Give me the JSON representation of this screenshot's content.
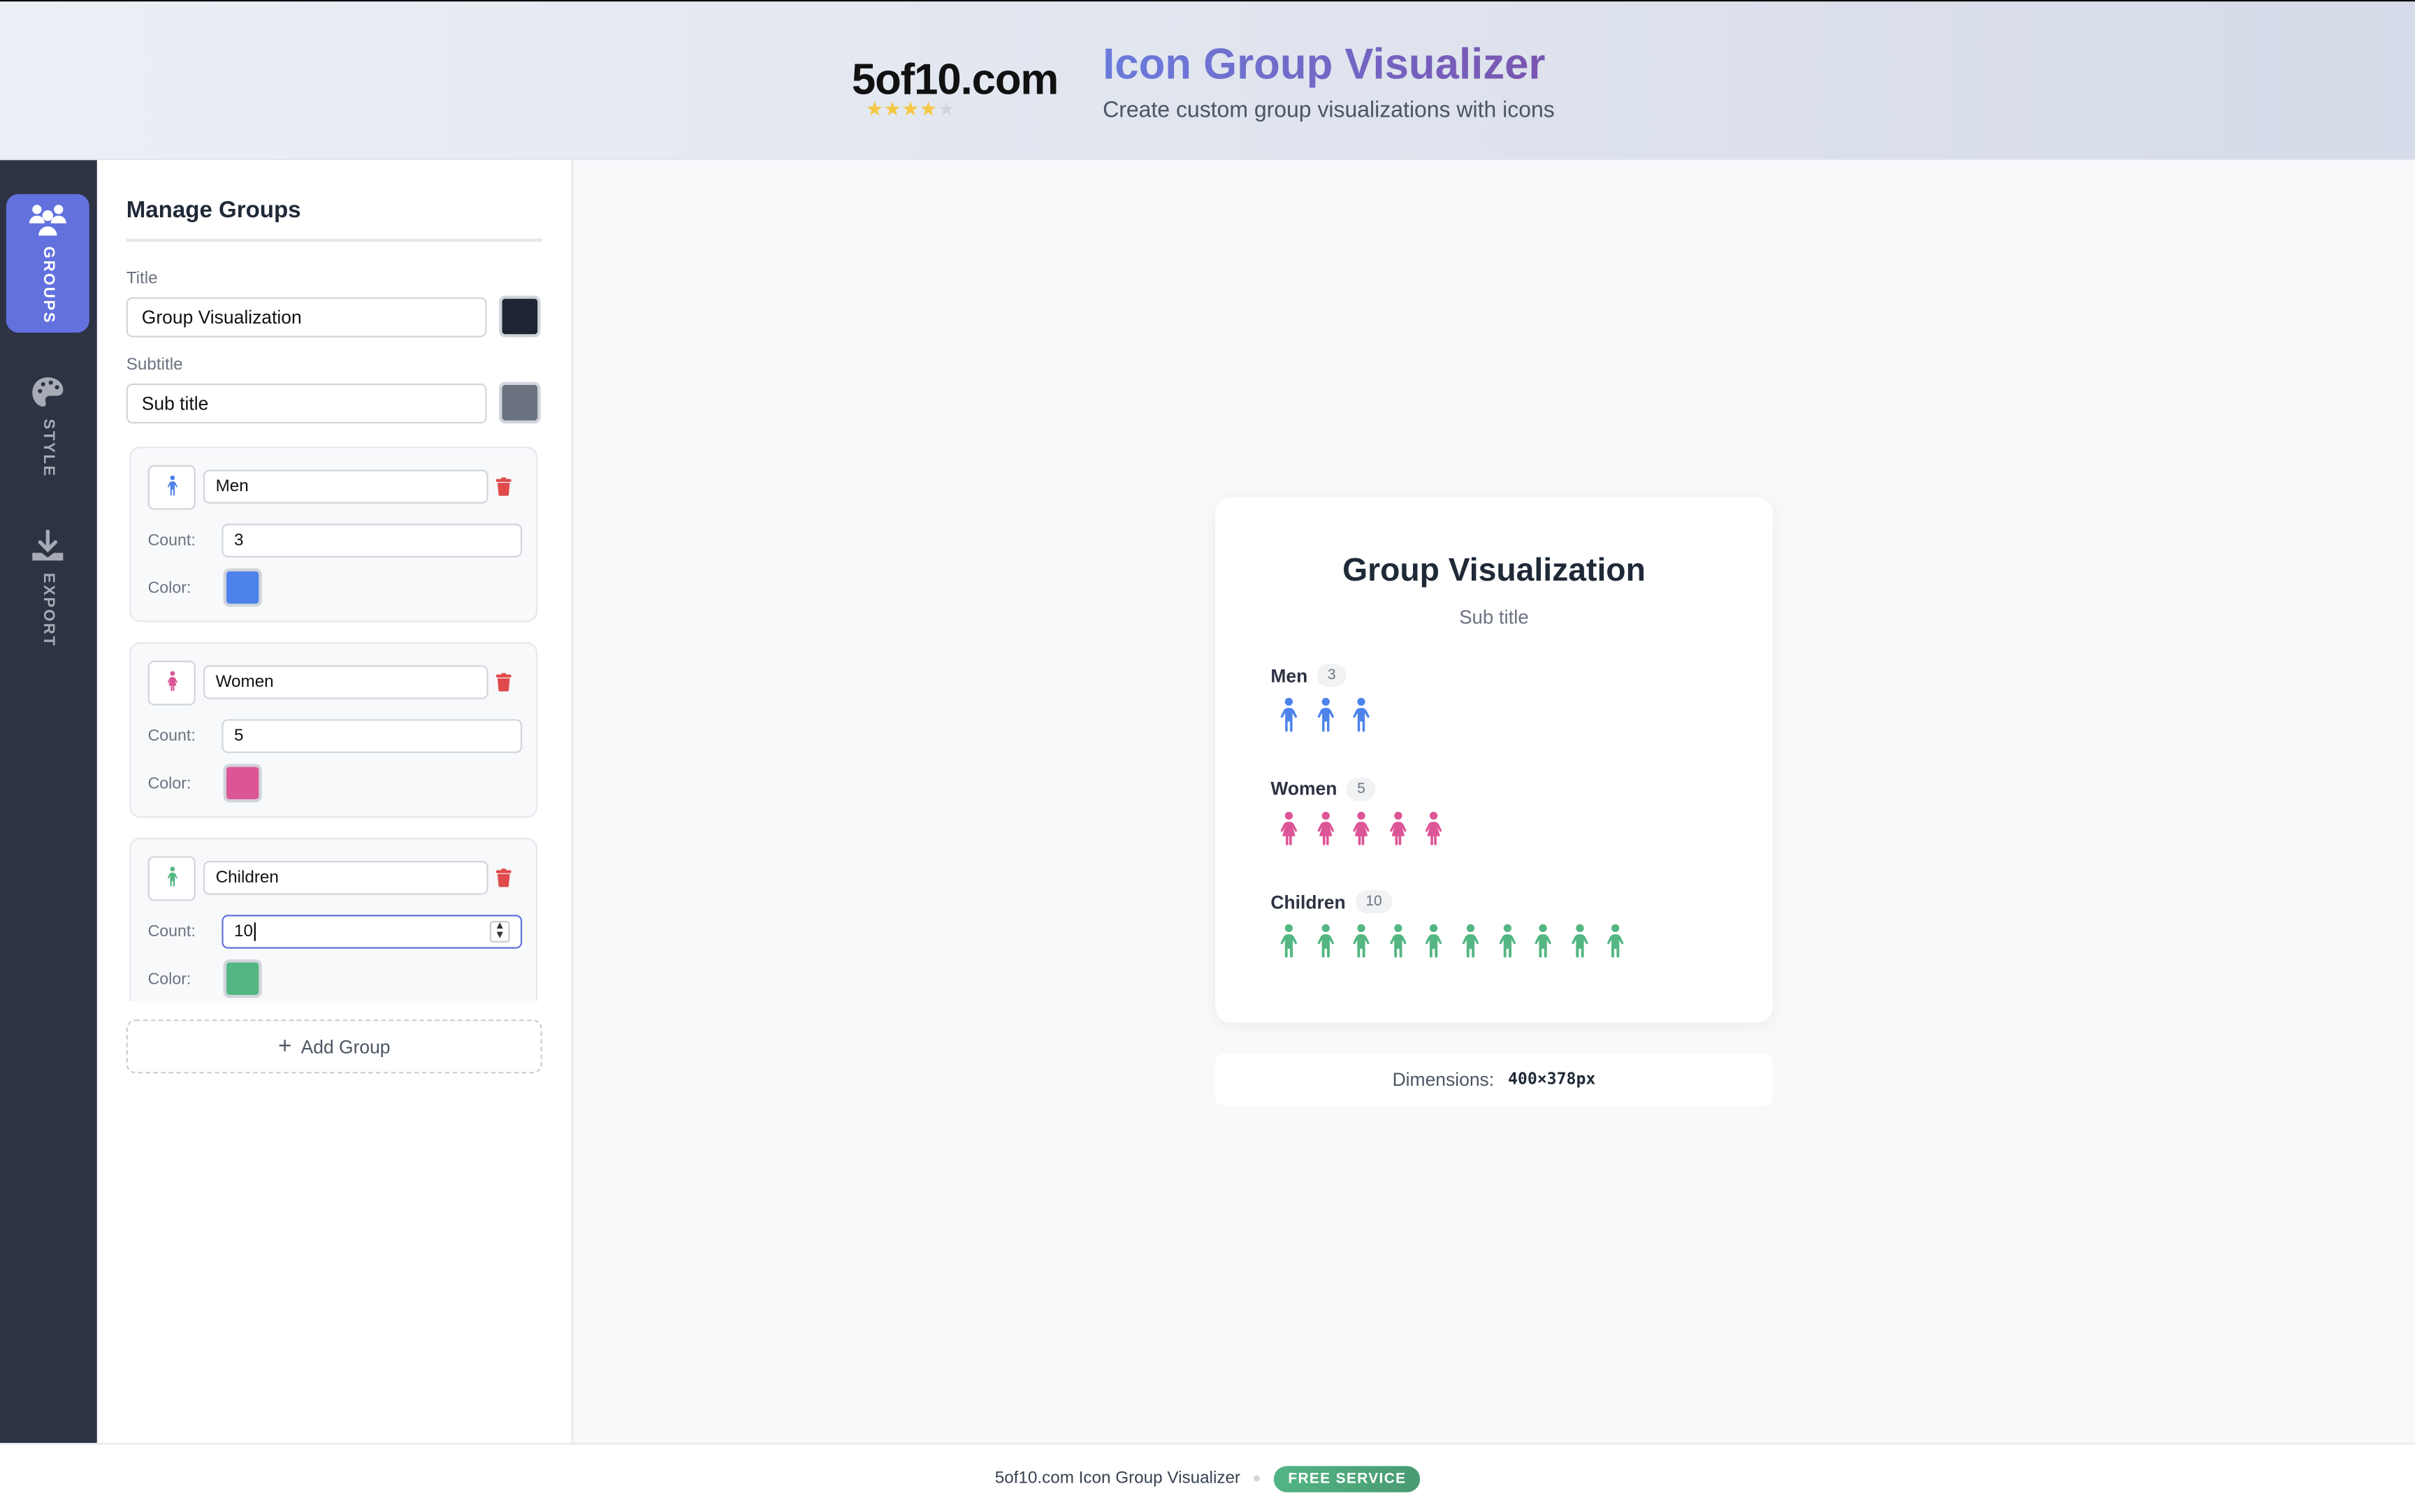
{
  "header": {
    "logo": "5of10.com",
    "rating": 4,
    "rating_max": 5,
    "title": "Icon Group Visualizer",
    "subtitle": "Create custom group visualizations with icons"
  },
  "sidebar": {
    "items": [
      {
        "label": "GROUPS",
        "icon": "users-icon",
        "active": true
      },
      {
        "label": "STYLE",
        "icon": "palette-icon",
        "active": false
      },
      {
        "label": "EXPORT",
        "icon": "download-icon",
        "active": false
      }
    ]
  },
  "panel": {
    "heading": "Manage Groups",
    "title_label": "Title",
    "title_value": "Group Visualization",
    "title_color": "#1f2533",
    "subtitle_label": "Subtitle",
    "subtitle_value": "Sub title",
    "subtitle_color": "#6b7280",
    "count_label": "Count:",
    "color_label": "Color:",
    "add_group": "Add Group",
    "groups": [
      {
        "name": "Men",
        "count": "3",
        "color": "#4d82ea",
        "icon": "male-icon"
      },
      {
        "name": "Women",
        "count": "5",
        "color": "#dc5597",
        "icon": "female-icon"
      },
      {
        "name": "Children",
        "count": "10",
        "color": "#54b682",
        "icon": "child-icon"
      }
    ]
  },
  "preview": {
    "title": "Group Visualization",
    "subtitle": "Sub title",
    "groups": [
      {
        "name": "Men",
        "count": 3,
        "color": "#4d82ea",
        "icon": "male-icon"
      },
      {
        "name": "Women",
        "count": 5,
        "color": "#dc5597",
        "icon": "female-icon"
      },
      {
        "name": "Children",
        "count": 10,
        "color": "#54b682",
        "icon": "child-icon"
      }
    ],
    "dimensions_label": "Dimensions:",
    "dimensions_value": "400×378px"
  },
  "footer": {
    "text": "5of10.com Icon Group Visualizer",
    "badge": "FREE SERVICE"
  }
}
